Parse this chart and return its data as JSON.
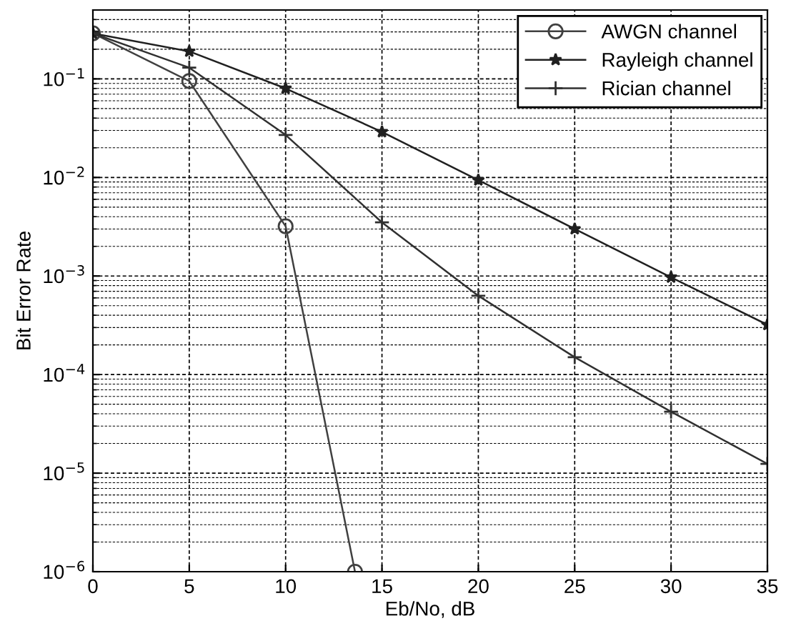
{
  "chart_data": {
    "type": "line",
    "xlabel": "Eb/No, dB",
    "ylabel": "Bit Error Rate",
    "series": [
      {
        "name": "AWGN channel",
        "color": "#404040",
        "marker": "circle",
        "x": [
          0,
          5,
          10,
          13.6
        ],
        "values": [
          0.29,
          0.095,
          0.0032,
          1e-06
        ]
      },
      {
        "name": "Rayleigh channel",
        "color": "#202020",
        "marker": "star",
        "x": [
          0,
          5,
          10,
          15,
          20,
          25,
          30,
          35
        ],
        "values": [
          0.29,
          0.19,
          0.08,
          0.029,
          0.0094,
          0.003,
          0.00097,
          0.00032
        ]
      },
      {
        "name": "Rician channel",
        "color": "#303030",
        "marker": "cross",
        "x": [
          0,
          5,
          10,
          15,
          20,
          25,
          30,
          35
        ],
        "values": [
          0.29,
          0.13,
          0.027,
          0.0035,
          0.00063,
          0.00015,
          4.2e-05,
          1.24e-05
        ]
      }
    ],
    "log": "y",
    "xlim": [
      0,
      35
    ],
    "xticks": [
      0,
      5,
      10,
      15,
      20,
      25,
      30,
      35
    ],
    "ylim": [
      1e-06,
      0.5
    ],
    "yticks": [
      {
        "value": 1e-06,
        "label": "10$^{−6}$"
      },
      {
        "value": 1e-05,
        "label": "10$^{−5}$"
      },
      {
        "value": 0.0001,
        "label": "10$^{−4}$"
      },
      {
        "value": 0.001,
        "label": "10$^{−3}$"
      },
      {
        "value": 0.01,
        "label": "10$^{−2}$"
      },
      {
        "value": 0.1,
        "label": "10$^{−1}$"
      }
    ],
    "grid": true,
    "legend": "top right",
    "line_style": "solid"
  }
}
